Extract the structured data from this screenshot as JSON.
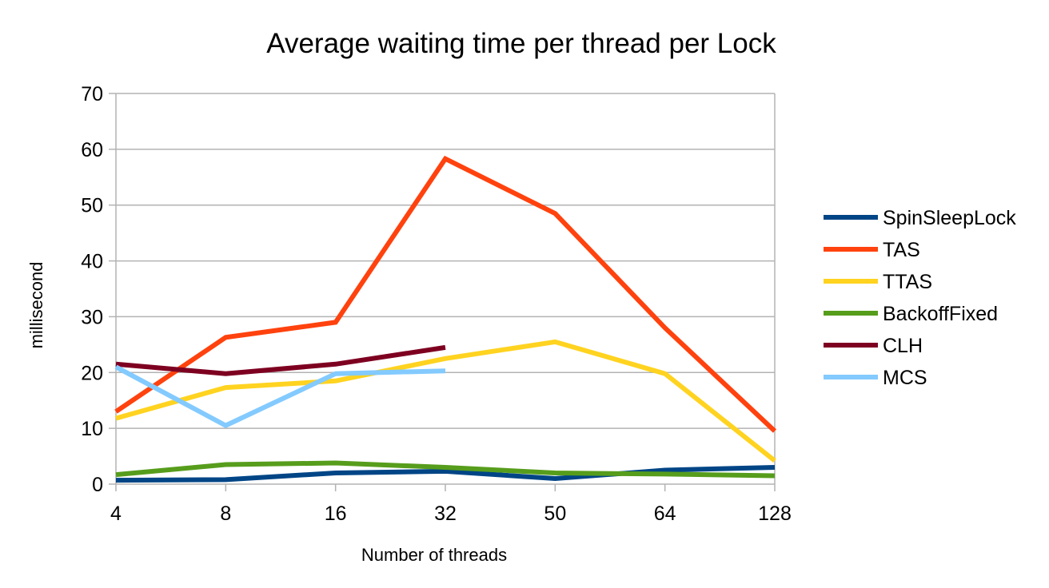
{
  "chart_data": {
    "type": "line",
    "title": "Average waiting time per thread per Lock",
    "xlabel": "Number of threads",
    "ylabel": "millisecond",
    "categories": [
      "4",
      "8",
      "16",
      "32",
      "50",
      "64",
      "128"
    ],
    "ylim": [
      0,
      70
    ],
    "yticks": [
      0,
      10,
      20,
      30,
      40,
      50,
      60,
      70
    ],
    "grid": "horizontal",
    "legend_position": "right",
    "series": [
      {
        "name": "SpinSleepLock",
        "color": "#004586",
        "values": [
          0.7,
          0.8,
          2.0,
          2.3,
          1.0,
          2.5,
          3.0
        ]
      },
      {
        "name": "TAS",
        "color": "#ff420e",
        "values": [
          13.0,
          26.3,
          29.0,
          58.3,
          48.5,
          28.0,
          9.5
        ]
      },
      {
        "name": "TTAS",
        "color": "#ffd320",
        "values": [
          11.8,
          17.3,
          18.5,
          22.5,
          25.5,
          19.8,
          4.2
        ]
      },
      {
        "name": "BackoffFixed",
        "color": "#579d1c",
        "values": [
          1.7,
          3.5,
          3.8,
          3.0,
          2.0,
          1.8,
          1.5
        ]
      },
      {
        "name": "CLH",
        "color": "#7e0021",
        "values": [
          21.5,
          19.8,
          21.5,
          24.5,
          null,
          null,
          null
        ]
      },
      {
        "name": "MCS",
        "color": "#83caff",
        "values": [
          21.0,
          10.5,
          19.8,
          20.3,
          null,
          null,
          null
        ]
      }
    ]
  }
}
